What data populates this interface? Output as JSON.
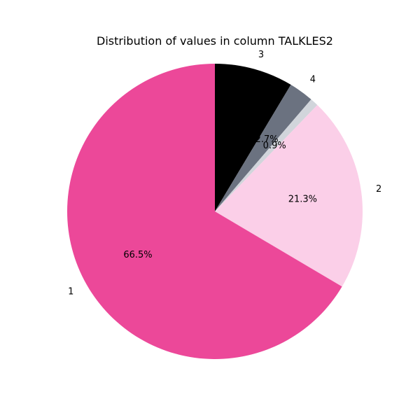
{
  "chart_data": {
    "type": "pie",
    "title": "Distribution of values in column TALKLES2",
    "slices": [
      {
        "label": "3",
        "value": 8.6,
        "pct_label": "8.6%",
        "color": "#000000"
      },
      {
        "label": "4",
        "value": 2.7,
        "pct_label": "2.7%",
        "color": "#6b7280"
      },
      {
        "label": "",
        "value": 0.9,
        "pct_label": "0.9%",
        "color": "#d1d5db"
      },
      {
        "label": "2",
        "value": 21.3,
        "pct_label": "21.3%",
        "color": "#fbcfe8"
      },
      {
        "label": "1",
        "value": 66.5,
        "pct_label": "66.5%",
        "color": "#ec4899"
      }
    ],
    "start_angle_deg": 90,
    "direction": "clockwise"
  }
}
